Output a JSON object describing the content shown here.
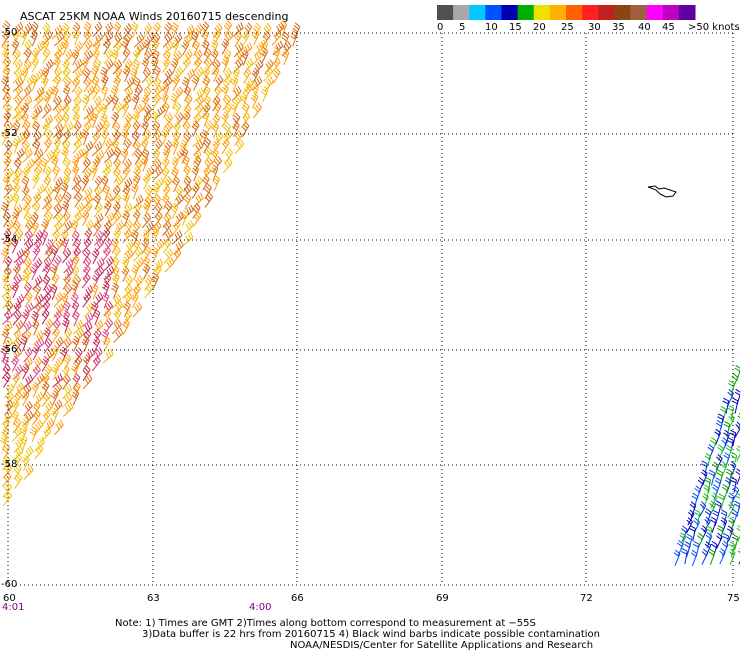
{
  "title": "ASCAT 25KM NOAA Winds 20160715 descending",
  "legend": {
    "labels": [
      "0",
      "5",
      "10",
      "15",
      "20",
      "25",
      "30",
      "35",
      "40",
      "45",
      ">50 knots"
    ],
    "colors": [
      "#505050",
      "#a8a8a8",
      "#00c8ff",
      "#0050ff",
      "#0000b0",
      "#00b000",
      "#f0e000",
      "#ffb000",
      "#ff6000",
      "#ff2020",
      "#c02020",
      "#8b4513",
      "#a06040",
      "#ff00ff",
      "#c000c0",
      "#6000a0"
    ]
  },
  "axes": {
    "lat_labels": [
      "-50",
      "-52",
      "-54",
      "-56",
      "-58",
      "-60"
    ],
    "lon_labels": [
      "60",
      "63",
      "66",
      "69",
      "72",
      "75"
    ]
  },
  "times": [
    "4:01",
    "4:00"
  ],
  "notes": [
    "Note: 1) Times are GMT 2)Times along bottom correspond to measurement at −55S",
    "3)Data buffer is 22 hrs from 20160715 4) Black wind barbs indicate possible contamination",
    "NOAA/NESDIS/Center for Satellite Applications and Research"
  ]
}
